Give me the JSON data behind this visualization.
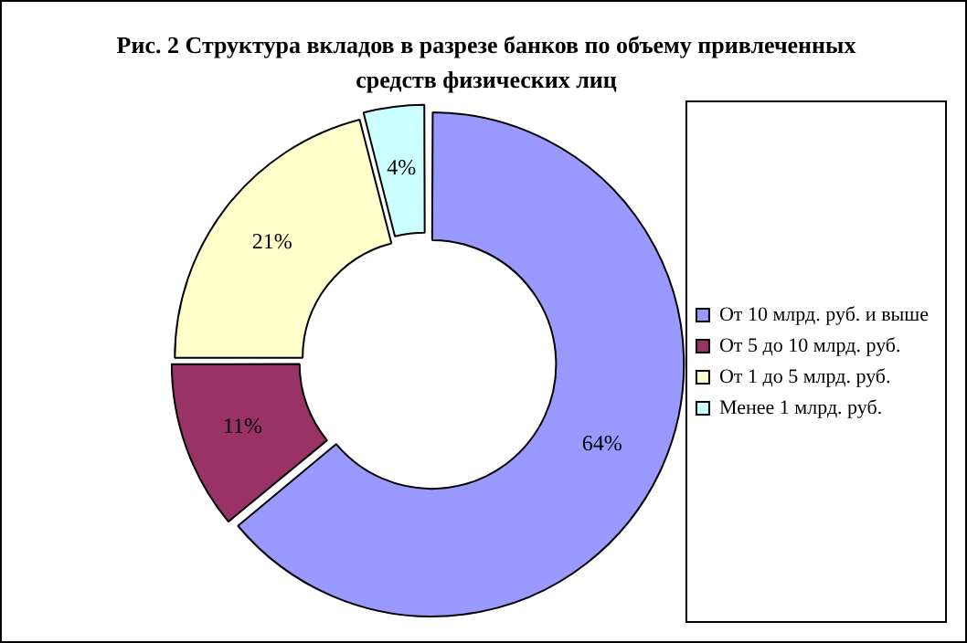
{
  "chart_data": {
    "type": "donut",
    "title": "Рис. 2 Структура вкладов в разрезе банков по объему привлеченных средств физических лиц",
    "categories": [
      "От 10 млрд. руб. и выше",
      "От 5 до 10 млрд. руб.",
      "От 1 до 5 млрд. руб.",
      "Менее 1 млрд. руб."
    ],
    "values": [
      64,
      11,
      21,
      4
    ],
    "colors": [
      "#9999ff",
      "#993366",
      "#ffffcc",
      "#ccffff"
    ],
    "value_labels": [
      "64%",
      "11%",
      "21%",
      "4%"
    ],
    "legend": "right"
  }
}
